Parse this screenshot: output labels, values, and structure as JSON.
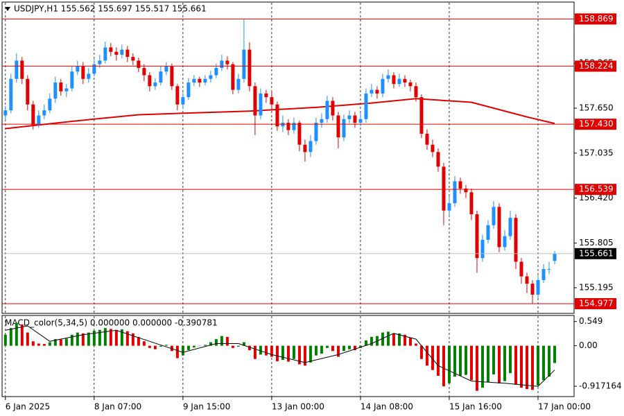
{
  "chart_data": [
    {
      "type": "candlestick",
      "title": "USDJPY,H1  155.562 155.697 155.517 155.661",
      "bull_color": "#1e90ff",
      "bear_color": "#e00000",
      "xlim": [
        -0.6,
        102.5
      ],
      "xticks": [
        {
          "value": 0,
          "label": "6 Jan 2025"
        },
        {
          "value": 16,
          "label": "8 Jan 07:00"
        },
        {
          "value": 32,
          "label": "9 Jan 15:00"
        },
        {
          "value": 48,
          "label": "13 Jan 00:00"
        },
        {
          "value": 64,
          "label": "14 Jan 08:00"
        },
        {
          "value": 80,
          "label": "15 Jan 16:00"
        },
        {
          "value": 96,
          "label": "17 Jan 00:00"
        }
      ],
      "grid": true,
      "ylim": [
        154.863,
        159.081
      ],
      "yticks": [
        158.265,
        {
          "value": 157.65,
          "label": "157.650"
        },
        157.035,
        {
          "value": 156.42,
          "label": "156.420"
        },
        155.805,
        155.195
      ],
      "hlines": {
        "color": "#e00000",
        "values": [
          158.869,
          158.224,
          {
            "value": 157.43,
            "label": "157.430"
          },
          156.539,
          154.977
        ]
      },
      "current_price": {
        "value": 155.661,
        "color": "#c0c0c0"
      },
      "open": [
        157.55,
        157.62,
        158.05,
        158.3,
        158.05,
        157.7,
        157.42,
        157.55,
        157.62,
        157.78,
        158.0,
        157.88,
        157.92,
        158.15,
        158.22,
        158.05,
        158.12,
        158.25,
        158.3,
        158.48,
        158.42,
        158.38,
        158.45,
        158.35,
        158.3,
        158.2,
        158.1,
        157.95,
        158.0,
        158.15,
        158.22,
        157.95,
        157.7,
        157.8,
        158.0,
        158.05,
        158.0,
        158.05,
        158.1,
        158.2,
        158.3,
        158.25,
        157.9,
        158.05,
        158.45,
        157.95,
        157.55,
        157.85,
        157.8,
        157.7,
        157.4,
        157.45,
        157.35,
        157.45,
        157.15,
        157.05,
        157.2,
        157.45,
        157.5,
        157.75,
        157.55,
        157.25,
        157.5,
        157.55,
        157.45,
        157.5,
        157.85,
        157.9,
        157.85,
        158.05,
        158.1,
        157.98,
        158.05,
        158.0,
        157.95,
        157.8,
        157.3,
        157.15,
        157.05,
        156.85,
        156.25,
        156.35,
        156.65,
        156.55,
        156.5,
        156.2,
        155.6,
        155.85,
        156.05,
        156.3,
        155.75,
        155.9,
        156.15,
        155.55,
        155.35,
        155.25,
        155.1,
        155.3,
        155.45,
        155.562
      ],
      "high": [
        157.68,
        158.12,
        158.4,
        158.35,
        158.1,
        157.75,
        157.62,
        157.7,
        157.85,
        158.08,
        158.05,
        157.98,
        158.22,
        158.3,
        158.28,
        158.2,
        158.32,
        158.38,
        158.56,
        158.54,
        158.48,
        158.52,
        158.5,
        158.4,
        158.34,
        158.25,
        158.14,
        158.06,
        158.22,
        158.28,
        158.26,
        157.98,
        157.86,
        158.06,
        158.1,
        158.08,
        158.1,
        158.16,
        158.26,
        158.38,
        158.36,
        158.28,
        158.12,
        158.87,
        158.55,
        158.0,
        157.92,
        157.9,
        157.88,
        157.74,
        157.55,
        157.5,
        157.52,
        157.48,
        157.22,
        157.28,
        157.52,
        157.58,
        157.82,
        157.8,
        157.6,
        157.56,
        157.62,
        157.6,
        157.58,
        157.92,
        157.98,
        157.95,
        158.12,
        158.18,
        158.14,
        158.12,
        158.1,
        158.04,
        158.0,
        157.84,
        157.36,
        157.22,
        157.1,
        156.9,
        156.45,
        156.72,
        156.7,
        156.6,
        156.55,
        156.25,
        155.92,
        156.12,
        156.38,
        156.35,
        155.98,
        156.25,
        156.2,
        155.6,
        155.4,
        155.3,
        155.36,
        155.52,
        155.55,
        155.697
      ],
      "low": [
        157.48,
        157.58,
        158.0,
        157.98,
        157.62,
        157.36,
        157.38,
        157.5,
        157.58,
        157.72,
        157.82,
        157.8,
        157.88,
        158.1,
        157.98,
        158.0,
        158.08,
        158.2,
        158.26,
        158.36,
        158.3,
        158.33,
        158.28,
        158.24,
        158.14,
        158.02,
        157.88,
        157.9,
        157.96,
        158.1,
        157.9,
        157.62,
        157.64,
        157.76,
        157.95,
        157.94,
        157.96,
        158.0,
        158.06,
        158.16,
        158.18,
        157.84,
        157.85,
        158.0,
        157.88,
        157.28,
        157.5,
        157.72,
        157.62,
        157.34,
        157.32,
        157.28,
        157.3,
        157.06,
        156.92,
        156.98,
        157.15,
        157.38,
        157.45,
        157.48,
        157.1,
        157.2,
        157.44,
        157.38,
        157.4,
        157.45,
        157.8,
        157.78,
        157.8,
        158.0,
        157.92,
        157.94,
        157.94,
        157.88,
        157.74,
        157.24,
        157.08,
        156.98,
        156.78,
        156.05,
        156.18,
        156.3,
        156.48,
        156.42,
        156.12,
        155.4,
        155.55,
        155.8,
        156.0,
        155.68,
        155.7,
        155.85,
        155.45,
        155.25,
        155.12,
        154.98,
        155.05,
        155.26,
        155.38,
        155.517
      ],
      "close": [
        157.62,
        158.05,
        158.3,
        158.05,
        157.7,
        157.42,
        157.55,
        157.62,
        157.78,
        158.0,
        157.88,
        157.92,
        158.15,
        158.22,
        158.05,
        158.12,
        158.25,
        158.3,
        158.48,
        158.42,
        158.38,
        158.45,
        158.35,
        158.3,
        158.2,
        158.1,
        157.95,
        158.0,
        158.15,
        158.22,
        157.95,
        157.7,
        157.8,
        158.0,
        158.05,
        158.0,
        158.05,
        158.1,
        158.2,
        158.3,
        158.25,
        157.9,
        158.05,
        158.45,
        157.95,
        157.55,
        157.85,
        157.8,
        157.7,
        157.4,
        157.45,
        157.35,
        157.45,
        157.15,
        157.05,
        157.2,
        157.45,
        157.5,
        157.75,
        157.55,
        157.25,
        157.5,
        157.55,
        157.45,
        157.5,
        157.85,
        157.9,
        157.85,
        158.05,
        158.1,
        157.98,
        158.05,
        158.0,
        157.95,
        157.8,
        157.3,
        157.15,
        157.05,
        156.85,
        156.25,
        156.35,
        156.65,
        156.55,
        156.5,
        156.2,
        155.6,
        155.85,
        156.05,
        156.3,
        155.75,
        155.9,
        156.15,
        155.55,
        155.35,
        155.25,
        155.1,
        155.3,
        155.45,
        155.45,
        155.661
      ],
      "lines": [
        {
          "color": "#e00000",
          "x": [
            0,
            12,
            24,
            44,
            56,
            66,
            74,
            84,
            94,
            99
          ],
          "values": [
            157.37,
            157.47,
            157.56,
            157.61,
            157.66,
            157.72,
            157.78,
            157.73,
            157.53,
            157.44
          ]
        }
      ]
    },
    {
      "type": "histogram",
      "title": "MACD_color(5,34,5) 0.000000 0.000000 -0.390781",
      "up_color": "#008000",
      "down_color": "#e00000",
      "ylim": [
        -1.12,
        0.67
      ],
      "yticks": [
        0.549,
        {
          "value": 0,
          "label": "0.00"
        },
        -0.917164
      ],
      "values": [
        0.25,
        0.4,
        0.52,
        0.48,
        0.3,
        0.1,
        0.05,
        0.04,
        0.08,
        0.15,
        0.14,
        0.16,
        0.25,
        0.3,
        0.28,
        0.3,
        0.34,
        0.36,
        0.4,
        0.38,
        0.36,
        0.37,
        0.33,
        0.28,
        0.2,
        0.1,
        -0.05,
        -0.08,
        -0.02,
        0.02,
        -0.12,
        -0.28,
        -0.22,
        -0.1,
        -0.04,
        0.0,
        0.02,
        0.08,
        0.15,
        0.22,
        0.2,
        -0.05,
        -0.02,
        0.08,
        -0.1,
        -0.3,
        -0.2,
        -0.22,
        -0.25,
        -0.35,
        -0.32,
        -0.36,
        -0.3,
        -0.42,
        -0.45,
        -0.38,
        -0.22,
        -0.18,
        -0.05,
        -0.12,
        -0.25,
        -0.12,
        -0.08,
        -0.1,
        -0.05,
        0.12,
        0.2,
        0.22,
        0.3,
        0.32,
        0.28,
        0.28,
        0.25,
        0.18,
        0.05,
        -0.3,
        -0.45,
        -0.55,
        -0.68,
        -0.92,
        -0.85,
        -0.7,
        -0.68,
        -0.66,
        -0.78,
        -1.02,
        -0.95,
        -0.82,
        -0.65,
        -0.85,
        -0.8,
        -0.62,
        -0.88,
        -0.95,
        -0.98,
        -1.0,
        -0.9,
        -0.78,
        -0.7,
        -0.390781
      ],
      "signal": {
        "color": "#000000",
        "x": [
          0,
          4,
          8,
          14,
          20,
          26,
          32,
          38,
          42,
          48,
          54,
          60,
          66,
          70,
          74,
          78,
          84,
          90,
          96,
          99
        ],
        "values": [
          0.35,
          0.45,
          0.1,
          0.25,
          0.35,
          0.1,
          -0.15,
          0.05,
          0.05,
          -0.2,
          -0.38,
          -0.2,
          0.05,
          0.28,
          0.15,
          -0.45,
          -0.8,
          -0.85,
          -0.92,
          -0.55
        ]
      }
    }
  ]
}
